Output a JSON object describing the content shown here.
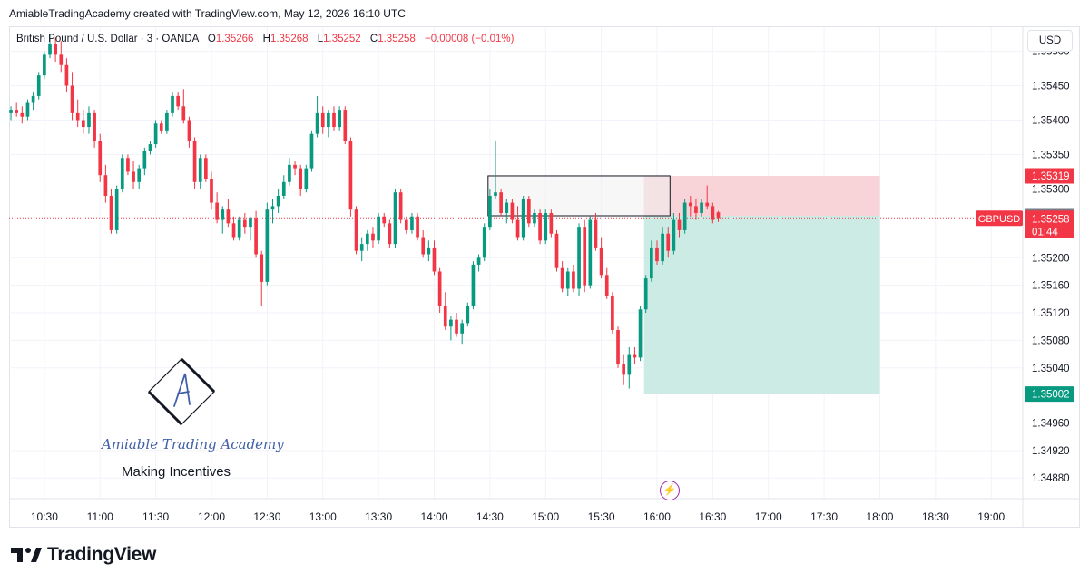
{
  "header": {
    "credit": "AmiableTradingAcademy created with TradingView.com, May 12, 2026 16:10 UTC"
  },
  "legend": {
    "symbol": "British Pound / U.S. Dollar · 3 · OANDA",
    "o_label": "O",
    "o_value": "1.35266",
    "h_label": "H",
    "h_value": "1.35268",
    "l_label": "L",
    "l_value": "1.35252",
    "c_label": "C",
    "c_value": "1.35258",
    "change": "−0.00008 (−0.01%)"
  },
  "currency": "USD",
  "colors": {
    "up": "#089981",
    "down": "#f23645",
    "target_zone": "#cdebe5",
    "stop_zone": "#f8d3d7",
    "grid": "#f0f3fa",
    "price_line": "#f23645"
  },
  "chart_data": {
    "type": "candlestick",
    "symbol": "GBPUSD",
    "timeframe": "3",
    "ylim": [
      1.3485,
      1.35535
    ],
    "price_ticks": [
      1.355,
      1.3545,
      1.354,
      1.3535,
      1.353,
      1.352,
      1.3516,
      1.3512,
      1.3508,
      1.3504,
      1.3496,
      1.3492,
      1.3488
    ],
    "price_tick_labels": [
      "1.35500",
      "1.35450",
      "1.35400",
      "1.35350",
      "1.35300",
      "1.35200",
      "1.35160",
      "1.35120",
      "1.35080",
      "1.35040",
      "1.34960",
      "1.34920",
      "1.34880"
    ],
    "time_labels": [
      "10:30",
      "11:00",
      "11:30",
      "12:00",
      "12:30",
      "13:00",
      "13:30",
      "14:00",
      "14:30",
      "15:00",
      "15:30",
      "16:00",
      "16:30",
      "17:00",
      "17:30",
      "18:00",
      "18:30",
      "19:00"
    ],
    "time_minutes": [
      630,
      660,
      690,
      720,
      750,
      780,
      810,
      840,
      870,
      900,
      930,
      960,
      990,
      1020,
      1050,
      1080,
      1110,
      1140
    ],
    "xlim_minutes": [
      611,
      1157
    ],
    "candles": [
      [
        1.3541,
        1.3542,
        1.354,
        1.35415
      ],
      [
        1.35415,
        1.35425,
        1.35405,
        1.3541
      ],
      [
        1.3541,
        1.3542,
        1.35395,
        1.35405
      ],
      [
        1.35405,
        1.3543,
        1.354,
        1.35425
      ],
      [
        1.35425,
        1.3544,
        1.35415,
        1.35435
      ],
      [
        1.35435,
        1.3547,
        1.3543,
        1.35465
      ],
      [
        1.35465,
        1.355,
        1.3546,
        1.35495
      ],
      [
        1.35495,
        1.35525,
        1.3549,
        1.3551
      ],
      [
        1.3551,
        1.3552,
        1.35485,
        1.35495
      ],
      [
        1.35495,
        1.35515,
        1.3547,
        1.3548
      ],
      [
        1.3548,
        1.3549,
        1.3544,
        1.3545
      ],
      [
        1.3545,
        1.3547,
        1.354,
        1.3541
      ],
      [
        1.3541,
        1.3543,
        1.3539,
        1.354
      ],
      [
        1.354,
        1.35415,
        1.3538,
        1.3539
      ],
      [
        1.3539,
        1.3542,
        1.3538,
        1.3541
      ],
      [
        1.3541,
        1.35415,
        1.3536,
        1.3537
      ],
      [
        1.3537,
        1.3538,
        1.3531,
        1.3532
      ],
      [
        1.3532,
        1.35335,
        1.3528,
        1.3529
      ],
      [
        1.3529,
        1.353,
        1.35235,
        1.3524
      ],
      [
        1.3524,
        1.35305,
        1.35235,
        1.353
      ],
      [
        1.353,
        1.3535,
        1.35295,
        1.35345
      ],
      [
        1.35345,
        1.3535,
        1.3532,
        1.35325
      ],
      [
        1.35325,
        1.3534,
        1.353,
        1.3531
      ],
      [
        1.3531,
        1.35335,
        1.353,
        1.3533
      ],
      [
        1.3533,
        1.3536,
        1.3532,
        1.35355
      ],
      [
        1.35355,
        1.3537,
        1.3535,
        1.35365
      ],
      [
        1.35365,
        1.354,
        1.3536,
        1.35395
      ],
      [
        1.35395,
        1.354,
        1.3538,
        1.35385
      ],
      [
        1.35385,
        1.35415,
        1.3538,
        1.3541
      ],
      [
        1.3541,
        1.3544,
        1.35405,
        1.35435
      ],
      [
        1.35435,
        1.3544,
        1.35415,
        1.3542
      ],
      [
        1.3542,
        1.35445,
        1.35395,
        1.354
      ],
      [
        1.354,
        1.35405,
        1.3536,
        1.3537
      ],
      [
        1.3537,
        1.35375,
        1.353,
        1.3531
      ],
      [
        1.3531,
        1.3535,
        1.353,
        1.35345
      ],
      [
        1.35345,
        1.3535,
        1.3531,
        1.35315
      ],
      [
        1.35315,
        1.35325,
        1.3527,
        1.3528
      ],
      [
        1.3528,
        1.35295,
        1.3525,
        1.35255
      ],
      [
        1.35255,
        1.35275,
        1.35235,
        1.3527
      ],
      [
        1.3527,
        1.35285,
        1.35245,
        1.3525
      ],
      [
        1.3525,
        1.3526,
        1.35225,
        1.3523
      ],
      [
        1.3523,
        1.3526,
        1.35225,
        1.35255
      ],
      [
        1.35255,
        1.35265,
        1.35235,
        1.35245
      ],
      [
        1.35245,
        1.3526,
        1.35225,
        1.35258
      ],
      [
        1.35258,
        1.35268,
        1.352,
        1.35205
      ],
      [
        1.35205,
        1.3521,
        1.3513,
        1.35165
      ],
      [
        1.35165,
        1.3528,
        1.3516,
        1.3527
      ],
      [
        1.3527,
        1.35285,
        1.3525,
        1.35275
      ],
      [
        1.35275,
        1.353,
        1.35265,
        1.3529
      ],
      [
        1.3529,
        1.3532,
        1.35285,
        1.3531
      ],
      [
        1.3531,
        1.35345,
        1.35305,
        1.35335
      ],
      [
        1.35335,
        1.3534,
        1.3532,
        1.3533
      ],
      [
        1.3533,
        1.35335,
        1.3529,
        1.353
      ],
      [
        1.353,
        1.35335,
        1.35295,
        1.3533
      ],
      [
        1.3533,
        1.35385,
        1.35325,
        1.3538
      ],
      [
        1.3538,
        1.35435,
        1.35375,
        1.3541
      ],
      [
        1.3541,
        1.3542,
        1.3538,
        1.3539
      ],
      [
        1.3539,
        1.35415,
        1.35375,
        1.3541
      ],
      [
        1.3541,
        1.3542,
        1.35385,
        1.3539
      ],
      [
        1.3539,
        1.3542,
        1.35385,
        1.35415
      ],
      [
        1.35415,
        1.3542,
        1.35365,
        1.3537
      ],
      [
        1.3537,
        1.35375,
        1.3526,
        1.3527
      ],
      [
        1.3527,
        1.35275,
        1.35205,
        1.3521
      ],
      [
        1.3521,
        1.3523,
        1.35195,
        1.3522
      ],
      [
        1.3522,
        1.3524,
        1.3521,
        1.35235
      ],
      [
        1.35235,
        1.35245,
        1.35215,
        1.35225
      ],
      [
        1.35225,
        1.35265,
        1.3522,
        1.3526
      ],
      [
        1.3526,
        1.35265,
        1.35245,
        1.3525
      ],
      [
        1.3525,
        1.35255,
        1.35215,
        1.3522
      ],
      [
        1.3522,
        1.353,
        1.35215,
        1.35295
      ],
      [
        1.35295,
        1.353,
        1.3525,
        1.35255
      ],
      [
        1.35255,
        1.3526,
        1.35235,
        1.3524
      ],
      [
        1.3524,
        1.35265,
        1.35235,
        1.3526
      ],
      [
        1.3526,
        1.35265,
        1.35225,
        1.3523
      ],
      [
        1.3523,
        1.3524,
        1.352,
        1.35205
      ],
      [
        1.35205,
        1.35225,
        1.35195,
        1.35215
      ],
      [
        1.35215,
        1.35225,
        1.35175,
        1.3518
      ],
      [
        1.3518,
        1.35185,
        1.3512,
        1.3513
      ],
      [
        1.3513,
        1.3515,
        1.35095,
        1.351
      ],
      [
        1.351,
        1.35115,
        1.3508,
        1.3511
      ],
      [
        1.3511,
        1.3512,
        1.35085,
        1.3509
      ],
      [
        1.3509,
        1.3511,
        1.35075,
        1.35105
      ],
      [
        1.35105,
        1.35135,
        1.351,
        1.3513
      ],
      [
        1.3513,
        1.35195,
        1.35125,
        1.3519
      ],
      [
        1.3519,
        1.35205,
        1.3518,
        1.352
      ],
      [
        1.352,
        1.3525,
        1.35195,
        1.35245
      ],
      [
        1.35245,
        1.353,
        1.3524,
        1.3529
      ],
      [
        1.3529,
        1.3537,
        1.35285,
        1.35295
      ],
      [
        1.35295,
        1.353,
        1.3526,
        1.35265
      ],
      [
        1.35265,
        1.35285,
        1.3525,
        1.3528
      ],
      [
        1.3528,
        1.35285,
        1.3525,
        1.35255
      ],
      [
        1.35255,
        1.35275,
        1.35225,
        1.3523
      ],
      [
        1.3523,
        1.3529,
        1.35225,
        1.35285
      ],
      [
        1.35285,
        1.3529,
        1.35245,
        1.3525
      ],
      [
        1.3525,
        1.3527,
        1.35245,
        1.35265
      ],
      [
        1.35265,
        1.3527,
        1.3522,
        1.35225
      ],
      [
        1.35225,
        1.3527,
        1.3522,
        1.35265
      ],
      [
        1.35265,
        1.3527,
        1.3523,
        1.35235
      ],
      [
        1.35235,
        1.3524,
        1.3518,
        1.35185
      ],
      [
        1.35185,
        1.35195,
        1.3515,
        1.35155
      ],
      [
        1.35155,
        1.35185,
        1.35145,
        1.3518
      ],
      [
        1.3518,
        1.3519,
        1.3515,
        1.35155
      ],
      [
        1.35155,
        1.3525,
        1.35145,
        1.35245
      ],
      [
        1.35245,
        1.35255,
        1.3515,
        1.3516
      ],
      [
        1.3516,
        1.3526,
        1.35155,
        1.35255
      ],
      [
        1.35255,
        1.35265,
        1.3521,
        1.35215
      ],
      [
        1.35215,
        1.3523,
        1.3517,
        1.35175
      ],
      [
        1.35175,
        1.35185,
        1.3514,
        1.35145
      ],
      [
        1.35145,
        1.3515,
        1.3509,
        1.35095
      ],
      [
        1.35095,
        1.351,
        1.3504,
        1.35045
      ],
      [
        1.35045,
        1.3506,
        1.35015,
        1.3503
      ],
      [
        1.3503,
        1.3507,
        1.3501,
        1.3506
      ],
      [
        1.3506,
        1.3507,
        1.35045,
        1.35055
      ],
      [
        1.35055,
        1.3513,
        1.3505,
        1.35125
      ],
      [
        1.35125,
        1.35175,
        1.3512,
        1.3517
      ],
      [
        1.3517,
        1.35225,
        1.35165,
        1.35215
      ],
      [
        1.35215,
        1.35225,
        1.3519,
        1.35195
      ],
      [
        1.35195,
        1.35245,
        1.3519,
        1.35235
      ],
      [
        1.35235,
        1.35245,
        1.352,
        1.3521
      ],
      [
        1.3521,
        1.35265,
        1.35205,
        1.35255
      ],
      [
        1.35255,
        1.35265,
        1.3523,
        1.3524
      ],
      [
        1.3524,
        1.35285,
        1.35235,
        1.3528
      ],
      [
        1.3528,
        1.3529,
        1.3526,
        1.35275
      ],
      [
        1.35275,
        1.35285,
        1.35255,
        1.35265
      ],
      [
        1.35265,
        1.35285,
        1.3526,
        1.3528
      ],
      [
        1.3528,
        1.35305,
        1.3527,
        1.35275
      ],
      [
        1.35275,
        1.3528,
        1.3525,
        1.35255
      ],
      [
        1.35266,
        1.35268,
        1.35252,
        1.35258
      ]
    ],
    "candle_start_minute": 612,
    "candle_interval_minutes": 3,
    "current_price": 1.35258,
    "current_price_label": "1.35258",
    "countdown": "01:44",
    "symbol_tag": "GBPUSD",
    "position": {
      "type": "short",
      "entry": 1.35261,
      "entry_label": "1.35261",
      "stop": 1.35319,
      "stop_label": "1.35319",
      "target": 1.35002,
      "target_label": "1.35002",
      "start_minute": 953,
      "end_minute": 1080
    },
    "zone_rectangle": {
      "top": 1.35319,
      "bottom": 1.35261,
      "start_minute": 869,
      "end_minute": 967
    }
  },
  "branding": {
    "academy_name": "Amiable Trading Academy",
    "tagline": "Making Incentives",
    "logo_letter": "A",
    "tv_wordmark": "TradingView"
  }
}
